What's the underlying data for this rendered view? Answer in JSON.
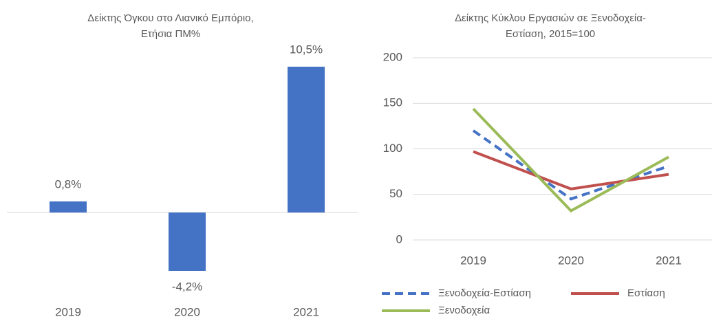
{
  "chart_data": [
    {
      "type": "bar",
      "title": [
        "Δείκτης Όγκου στο Λιανικό Εμπόριο,",
        "Ετήσια ΠΜ%"
      ],
      "categories": [
        "2019",
        "2020",
        "2021"
      ],
      "values": [
        0.8,
        -4.2,
        10.5
      ],
      "value_labels": [
        "0,8%",
        "-4,2%",
        "10,5%"
      ],
      "color": "#4472c4"
    },
    {
      "type": "line",
      "title": [
        "Δείκτης Κύκλου Εργασιών σε Ξενοδοχεία-",
        "Εστίαση, 2015=100"
      ],
      "categories": [
        "2019",
        "2020",
        "2021"
      ],
      "ylim": [
        0,
        200
      ],
      "yticks": [
        0,
        50,
        100,
        150,
        200
      ],
      "grid": true,
      "legend": "bottom",
      "series": [
        {
          "name": "Ξενοδοχεία-Εστίαση",
          "color": "#4472c4",
          "line_style": "dashed",
          "values": [
            120,
            45,
            81
          ]
        },
        {
          "name": "Εστίαση",
          "color": "#c0504d",
          "line_style": "solid",
          "values": [
            97,
            56,
            72
          ]
        },
        {
          "name": "Ξενοδοχεία",
          "color": "#9bbb59",
          "line_style": "solid",
          "values": [
            144,
            32,
            91
          ]
        }
      ]
    }
  ]
}
